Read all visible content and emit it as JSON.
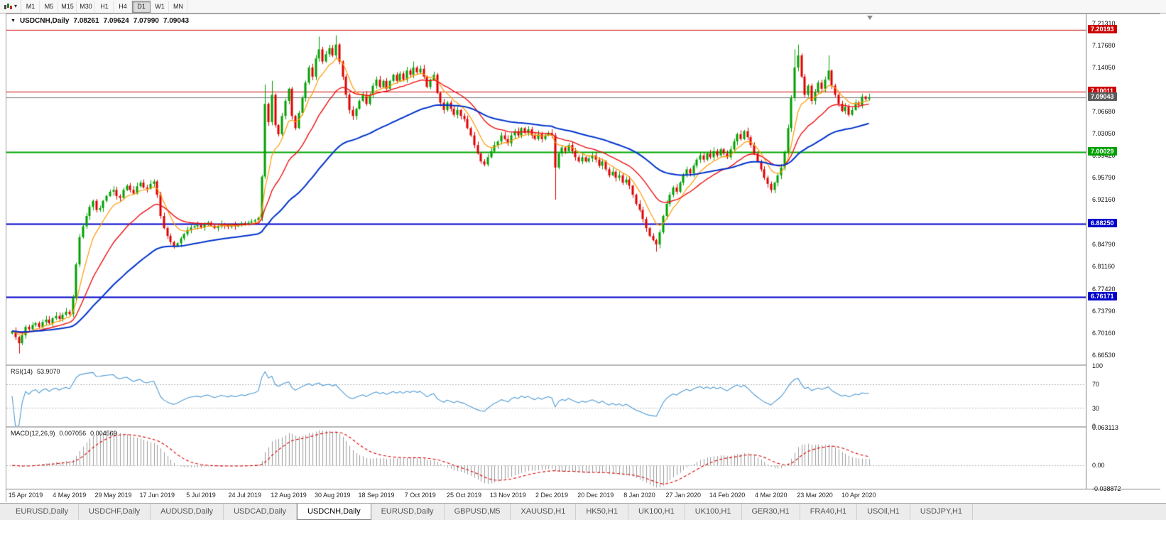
{
  "toolbar": {
    "timeframes": [
      "M1",
      "M5",
      "M15",
      "M30",
      "H1",
      "H4",
      "D1",
      "W1",
      "MN"
    ],
    "active_timeframe": "D1"
  },
  "chart": {
    "symbol": "USDCNH,Daily",
    "open": "7.08261",
    "high": "7.09624",
    "low": "7.07990",
    "close": "7.09043"
  },
  "price_axis": {
    "ticks": [
      "7.21310",
      "7.17680",
      "7.14050",
      "7.06680",
      "7.03050",
      "6.99420",
      "6.95790",
      "6.92160",
      "6.84790",
      "6.81160",
      "6.77420",
      "6.73790",
      "6.70160",
      "6.66530"
    ],
    "line_labels": [
      {
        "text": "7.20193",
        "value": 7.20193,
        "color": "#cc0000"
      },
      {
        "text": "7.10011",
        "value": 7.10011,
        "color": "#cc0000"
      },
      {
        "text": "7.09043",
        "value": 7.09043,
        "color": "#5a5a5a"
      },
      {
        "text": "7.00029",
        "value": 7.00029,
        "color": "#00a000"
      },
      {
        "text": "6.88250",
        "value": 6.8825,
        "color": "#0000cc"
      },
      {
        "text": "6.76171",
        "value": 6.76171,
        "color": "#0000cc"
      }
    ]
  },
  "rsi_panel": {
    "label": "RSI(14)",
    "value": "53.9070",
    "axis_labels": [
      "100",
      "70",
      "30",
      "0"
    ]
  },
  "macd_panel": {
    "label": "MACD(12,26,9)",
    "value_main": "0.007056",
    "value_signal": "0.004569",
    "axis_labels": [
      "0.063113",
      "0.00",
      "-0.038872"
    ]
  },
  "tabs": {
    "items": [
      "EURUSD,Daily",
      "USDCHF,Daily",
      "AUDUSD,Daily",
      "USDCAD,Daily",
      "USDCNH,Daily",
      "EURUSD,Daily",
      "GBPUSD,M5",
      "XAUUSD,H1",
      "HK50,H1",
      "UK100,H1",
      "UK100,H1",
      "GER30,H1",
      "FRA40,H1",
      "USOil,H1",
      "USDJPY,H1"
    ],
    "active_index": 4
  },
  "chart_data": {
    "type": "candlestick",
    "title": "USDCNH Daily",
    "x_labels": [
      "15 Apr 2019",
      "4 May 2019",
      "29 May 2019",
      "17 Jun 2019",
      "5 Jul 2019",
      "24 Jul 2019",
      "12 Aug 2019",
      "30 Aug 2019",
      "18 Sep 2019",
      "7 Oct 2019",
      "25 Oct 2019",
      "13 Nov 2019",
      "2 Dec 2019",
      "20 Dec 2019",
      "8 Jan 2020",
      "27 Jan 2020",
      "14 Feb 2020",
      "4 Mar 2020",
      "23 Mar 2020",
      "10 Apr 2020"
    ],
    "x_label_bars": [
      4,
      17,
      30,
      43,
      56,
      69,
      82,
      95,
      108,
      121,
      134,
      147,
      160,
      173,
      186,
      199,
      212,
      225,
      238,
      251
    ],
    "ylim": [
      6.65,
      7.228
    ],
    "closes": [
      6.705,
      6.695,
      6.685,
      6.698,
      6.712,
      6.708,
      6.715,
      6.718,
      6.712,
      6.72,
      6.724,
      6.718,
      6.726,
      6.73,
      6.725,
      6.732,
      6.737,
      6.733,
      6.76,
      6.815,
      6.86,
      6.878,
      6.895,
      6.91,
      6.92,
      6.905,
      6.908,
      6.92,
      6.928,
      6.935,
      6.938,
      6.928,
      6.925,
      6.938,
      6.945,
      6.938,
      6.932,
      6.944,
      6.95,
      6.942,
      6.94,
      6.948,
      6.952,
      6.93,
      6.895,
      6.875,
      6.862,
      6.852,
      6.845,
      6.85,
      6.858,
      6.865,
      6.872,
      6.876,
      6.878,
      6.88,
      6.876,
      6.882,
      6.884,
      6.879,
      6.875,
      6.878,
      6.882,
      6.88,
      6.877,
      6.881,
      6.878,
      6.88,
      6.883,
      6.881,
      6.884,
      6.886,
      6.888,
      6.892,
      6.96,
      7.08,
      7.05,
      7.095,
      7.045,
      7.03,
      7.06,
      7.085,
      7.105,
      7.06,
      7.04,
      7.065,
      7.09,
      7.115,
      7.14,
      7.125,
      7.155,
      7.17,
      7.15,
      7.162,
      7.172,
      7.16,
      7.178,
      7.15,
      7.125,
      7.095,
      7.07,
      7.06,
      7.072,
      7.085,
      7.095,
      7.08,
      7.095,
      7.11,
      7.12,
      7.108,
      7.118,
      7.105,
      7.118,
      7.128,
      7.118,
      7.13,
      7.12,
      7.135,
      7.128,
      7.14,
      7.132,
      7.138,
      7.125,
      7.108,
      7.12,
      7.128,
      7.098,
      7.082,
      7.07,
      7.082,
      7.072,
      7.062,
      7.07,
      7.06,
      7.055,
      7.04,
      7.028,
      7.012,
      6.998,
      6.985,
      6.98,
      6.992,
      7.002,
      7.012,
      7.018,
      7.028,
      7.022,
      7.015,
      7.028,
      7.035,
      7.028,
      7.04,
      7.032,
      7.038,
      7.028,
      7.022,
      7.03,
      7.022,
      7.028,
      7.032,
      7.028,
      6.975,
      6.998,
      7.008,
      7.002,
      7.012,
      7.002,
      6.992,
      6.985,
      6.992,
      6.985,
      6.99,
      6.995,
      6.988,
      6.978,
      6.985,
      6.972,
      6.962,
      6.968,
      6.958,
      6.962,
      6.95,
      6.955,
      6.945,
      6.93,
      6.915,
      6.905,
      6.89,
      6.875,
      6.862,
      6.855,
      6.848,
      6.868,
      6.895,
      6.915,
      6.93,
      6.942,
      6.935,
      6.95,
      6.962,
      6.972,
      6.965,
      6.978,
      6.988,
      6.995,
      6.988,
      6.998,
      6.992,
      7.002,
      6.995,
      7.005,
      6.998,
      6.992,
      7.005,
      7.018,
      7.03,
      7.022,
      7.035,
      7.025,
      7.012,
      6.998,
      6.985,
      6.972,
      6.958,
      6.948,
      6.938,
      6.95,
      6.962,
      6.975,
      7.0,
      7.04,
      7.09,
      7.14,
      7.16,
      7.125,
      7.095,
      7.11,
      7.085,
      7.1,
      7.115,
      7.105,
      7.12,
      7.135,
      7.11,
      7.095,
      7.08,
      7.068,
      7.075,
      7.062,
      7.07,
      7.082,
      7.078,
      7.092,
      7.088,
      7.0904
    ],
    "wicks": {
      "2": {
        "low": 6.668
      },
      "75": {
        "high": 7.112
      },
      "77": {
        "high": 7.118
      },
      "91": {
        "high": 7.191
      },
      "96": {
        "high": 7.193
      },
      "119": {
        "high": 7.15
      },
      "161": {
        "low": 6.922
      },
      "191": {
        "low": 6.836
      },
      "232": {
        "high": 7.17
      },
      "233": {
        "high": 7.178
      },
      "242": {
        "high": 7.16
      }
    },
    "overlays": [
      {
        "name": "MA fast",
        "period": 8,
        "color": "#ff9900"
      },
      {
        "name": "MA medium",
        "period": 21,
        "color": "#ee1111"
      },
      {
        "name": "MA slow",
        "period": 55,
        "color": "#0033cc"
      }
    ],
    "hlines": [
      {
        "value": 7.20193,
        "color": "#cc0000",
        "width": 1
      },
      {
        "value": 7.10011,
        "color": "#cc0000",
        "width": 1
      },
      {
        "value": 7.00029,
        "color": "#00a800",
        "width": 2
      },
      {
        "value": 6.8825,
        "color": "#0000cc",
        "width": 2
      },
      {
        "value": 6.76171,
        "color": "#0000cc",
        "width": 2
      }
    ],
    "current_price": 7.09043,
    "indicators": [
      {
        "type": "RSI",
        "period": 14,
        "current": 53.907,
        "range": [
          0,
          100
        ],
        "levels": [
          70,
          30
        ],
        "color": "#4f9bd5"
      },
      {
        "type": "MACD",
        "fast": 12,
        "slow": 26,
        "signal_period": 9,
        "current_macd": 0.007056,
        "current_signal": 0.004569,
        "range": [
          -0.038872,
          0.063113
        ],
        "histogram_color": "#9b9b9b",
        "signal_color": "#dd0000"
      }
    ]
  }
}
